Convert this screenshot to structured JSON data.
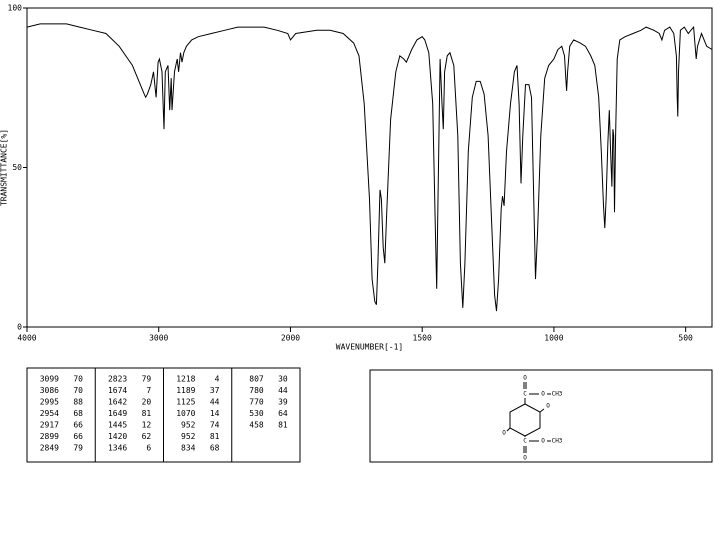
{
  "chart_data": {
    "type": "line",
    "xlabel": "WAVENUMBER[-1]",
    "ylabel": "TRANSMITTANCE[%]",
    "xlim": [
      4000,
      400
    ],
    "x_scale_change": {
      "at": 2000,
      "factor": 2
    },
    "xticks": [
      4000,
      3000,
      2000,
      1500,
      1000,
      500
    ],
    "ylim": [
      0,
      100
    ],
    "yticks": [
      0,
      50,
      100
    ],
    "x": [
      4000,
      3900,
      3800,
      3700,
      3600,
      3500,
      3400,
      3300,
      3200,
      3150,
      3110,
      3099,
      3086,
      3060,
      3040,
      3020,
      3005,
      2995,
      2975,
      2960,
      2950,
      2930,
      2917,
      2905,
      2899,
      2880,
      2860,
      2849,
      2835,
      2823,
      2810,
      2790,
      2750,
      2700,
      2600,
      2500,
      2400,
      2300,
      2200,
      2100,
      2020,
      2000,
      1980,
      1900,
      1850,
      1800,
      1760,
      1740,
      1720,
      1700,
      1690,
      1680,
      1674,
      1668,
      1660,
      1655,
      1648,
      1642,
      1635,
      1620,
      1600,
      1585,
      1570,
      1560,
      1540,
      1520,
      1500,
      1490,
      1475,
      1460,
      1450,
      1445,
      1440,
      1432,
      1425,
      1420,
      1415,
      1405,
      1395,
      1380,
      1365,
      1355,
      1346,
      1338,
      1325,
      1310,
      1295,
      1280,
      1265,
      1250,
      1235,
      1225,
      1218,
      1210,
      1200,
      1195,
      1189,
      1180,
      1165,
      1150,
      1140,
      1132,
      1125,
      1118,
      1108,
      1095,
      1085,
      1078,
      1070,
      1062,
      1050,
      1035,
      1020,
      1000,
      985,
      970,
      960,
      955,
      952,
      948,
      940,
      925,
      900,
      880,
      860,
      845,
      830,
      820,
      812,
      807,
      802,
      795,
      790,
      785,
      780,
      776,
      773,
      770,
      766,
      760,
      750,
      730,
      700,
      670,
      650,
      620,
      600,
      590,
      580,
      560,
      545,
      535,
      532,
      530,
      527,
      520,
      505,
      490,
      480,
      470,
      460,
      455,
      440,
      420,
      400
    ],
    "series": [
      {
        "color": "#000000",
        "values": [
          94,
          95,
          95,
          95,
          94,
          93,
          92,
          88,
          82,
          77,
          73,
          72,
          73,
          76,
          80,
          72,
          83,
          84,
          80,
          62,
          80,
          82,
          68,
          78,
          68,
          80,
          84,
          80,
          86,
          83,
          86,
          88,
          90,
          91,
          92,
          93,
          94,
          94,
          94,
          93,
          92,
          90,
          92,
          93,
          93,
          92,
          89,
          85,
          70,
          40,
          15,
          8,
          7,
          20,
          43,
          40,
          25,
          20,
          35,
          65,
          80,
          85,
          84,
          83,
          87,
          90,
          91,
          90,
          86,
          70,
          30,
          12,
          40,
          84,
          70,
          62,
          80,
          85,
          86,
          82,
          60,
          20,
          6,
          20,
          55,
          72,
          77,
          77,
          73,
          60,
          30,
          10,
          5,
          15,
          37,
          41,
          38,
          55,
          70,
          80,
          82,
          70,
          45,
          60,
          76,
          76,
          72,
          45,
          15,
          30,
          60,
          78,
          82,
          84,
          87,
          88,
          85,
          78,
          74,
          80,
          88,
          90,
          89,
          88,
          85,
          82,
          72,
          55,
          38,
          31,
          40,
          58,
          68,
          55,
          44,
          62,
          60,
          36,
          60,
          84,
          90,
          91,
          92,
          93,
          94,
          93,
          92,
          90,
          93,
          94,
          92,
          85,
          72,
          66,
          80,
          93,
          94,
          92,
          93,
          94,
          84,
          88,
          92,
          88,
          87
        ]
      }
    ]
  },
  "peak_table": [
    [
      [
        3099,
        70
      ],
      [
        3086,
        70
      ],
      [
        2995,
        88
      ],
      [
        2954,
        68
      ],
      [
        2917,
        66
      ],
      [
        2899,
        66
      ],
      [
        2849,
        79
      ]
    ],
    [
      [
        2823,
        79
      ],
      [
        1674,
        7
      ],
      [
        1642,
        20
      ],
      [
        1649,
        81
      ],
      [
        1445,
        12
      ],
      [
        1420,
        62
      ],
      [
        1346,
        6
      ]
    ],
    [
      [
        1218,
        4
      ],
      [
        1189,
        37
      ],
      [
        1125,
        44
      ],
      [
        1070,
        14
      ],
      [
        952,
        74
      ],
      [
        952,
        81
      ],
      [
        834,
        68
      ]
    ],
    [
      [
        807,
        30
      ],
      [
        780,
        44
      ],
      [
        770,
        39
      ],
      [
        530,
        64
      ],
      [
        458,
        81
      ]
    ]
  ],
  "structure": {
    "labels": [
      "O",
      "C",
      "O",
      "CH3",
      "O",
      "O",
      "C",
      "O",
      "CH3",
      "O"
    ]
  }
}
